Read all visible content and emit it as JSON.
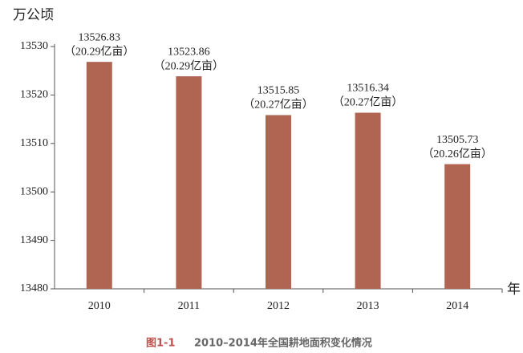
{
  "chart_data": {
    "type": "bar",
    "y_label": "万公顷",
    "x_label": "年",
    "categories": [
      "2010",
      "2011",
      "2012",
      "2013",
      "2014"
    ],
    "values": [
      13526.83,
      13523.86,
      13515.85,
      13516.34,
      13505.73
    ],
    "annotations": [
      "（20.29亿亩）",
      "（20.29亿亩）",
      "（20.27亿亩）",
      "（20.27亿亩）",
      "（20.26亿亩）"
    ],
    "color": "#b06452",
    "ylim": [
      13480,
      13530
    ],
    "yticks": [
      13480,
      13490,
      13500,
      13510,
      13520,
      13530
    ],
    "caption_label": "图1-1",
    "caption_text": "2010–2014年全国耕地面积变化情况"
  }
}
